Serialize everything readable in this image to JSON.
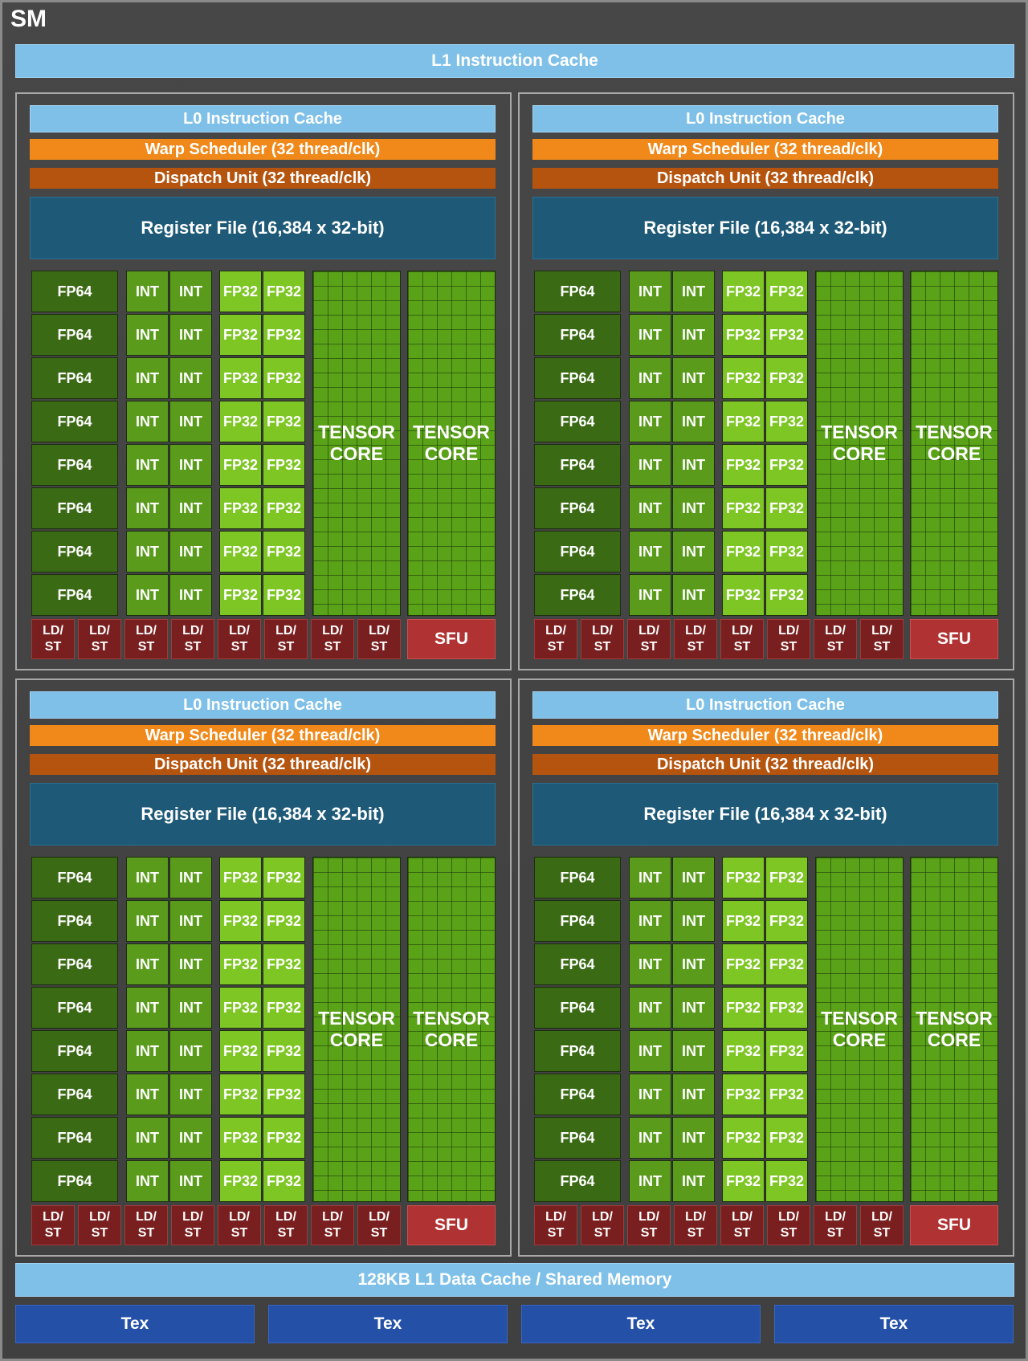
{
  "title": "SM",
  "l1_instruction_cache": "L1 Instruction Cache",
  "processing_block": {
    "l0_instruction_cache": "L0 Instruction Cache",
    "warp_scheduler": "Warp Scheduler (32 thread/clk)",
    "dispatch_unit": "Dispatch Unit (32 thread/clk)",
    "register_file": "Register File (16,384 x 32-bit)",
    "fp64_label": "FP64",
    "int_label": "INT",
    "fp32_label": "FP32",
    "tensor_core_label_line1": "TENSOR",
    "tensor_core_label_line2": "CORE",
    "ldst_line1": "LD/",
    "ldst_line2": "ST",
    "sfu_label": "SFU",
    "rows": 8,
    "tensor_cores": 2,
    "ldst_units": 8
  },
  "processing_block_count": 4,
  "l1_data_cache": "128KB L1 Data Cache / Shared Memory",
  "tex_units": [
    "Tex",
    "Tex",
    "Tex",
    "Tex"
  ],
  "colors": {
    "background": "#444444",
    "cache": "#7fc0e8",
    "warp_scheduler": "#f0891a",
    "dispatch_unit": "#b5540f",
    "register_file": "#1e5a78",
    "fp64": "#3a6a14",
    "int": "#5a9b1c",
    "fp32": "#7ec624",
    "tensor_core": "#5aa218",
    "ldst": "#7a1f1f",
    "sfu": "#b03232",
    "tex": "#2450a8"
  }
}
